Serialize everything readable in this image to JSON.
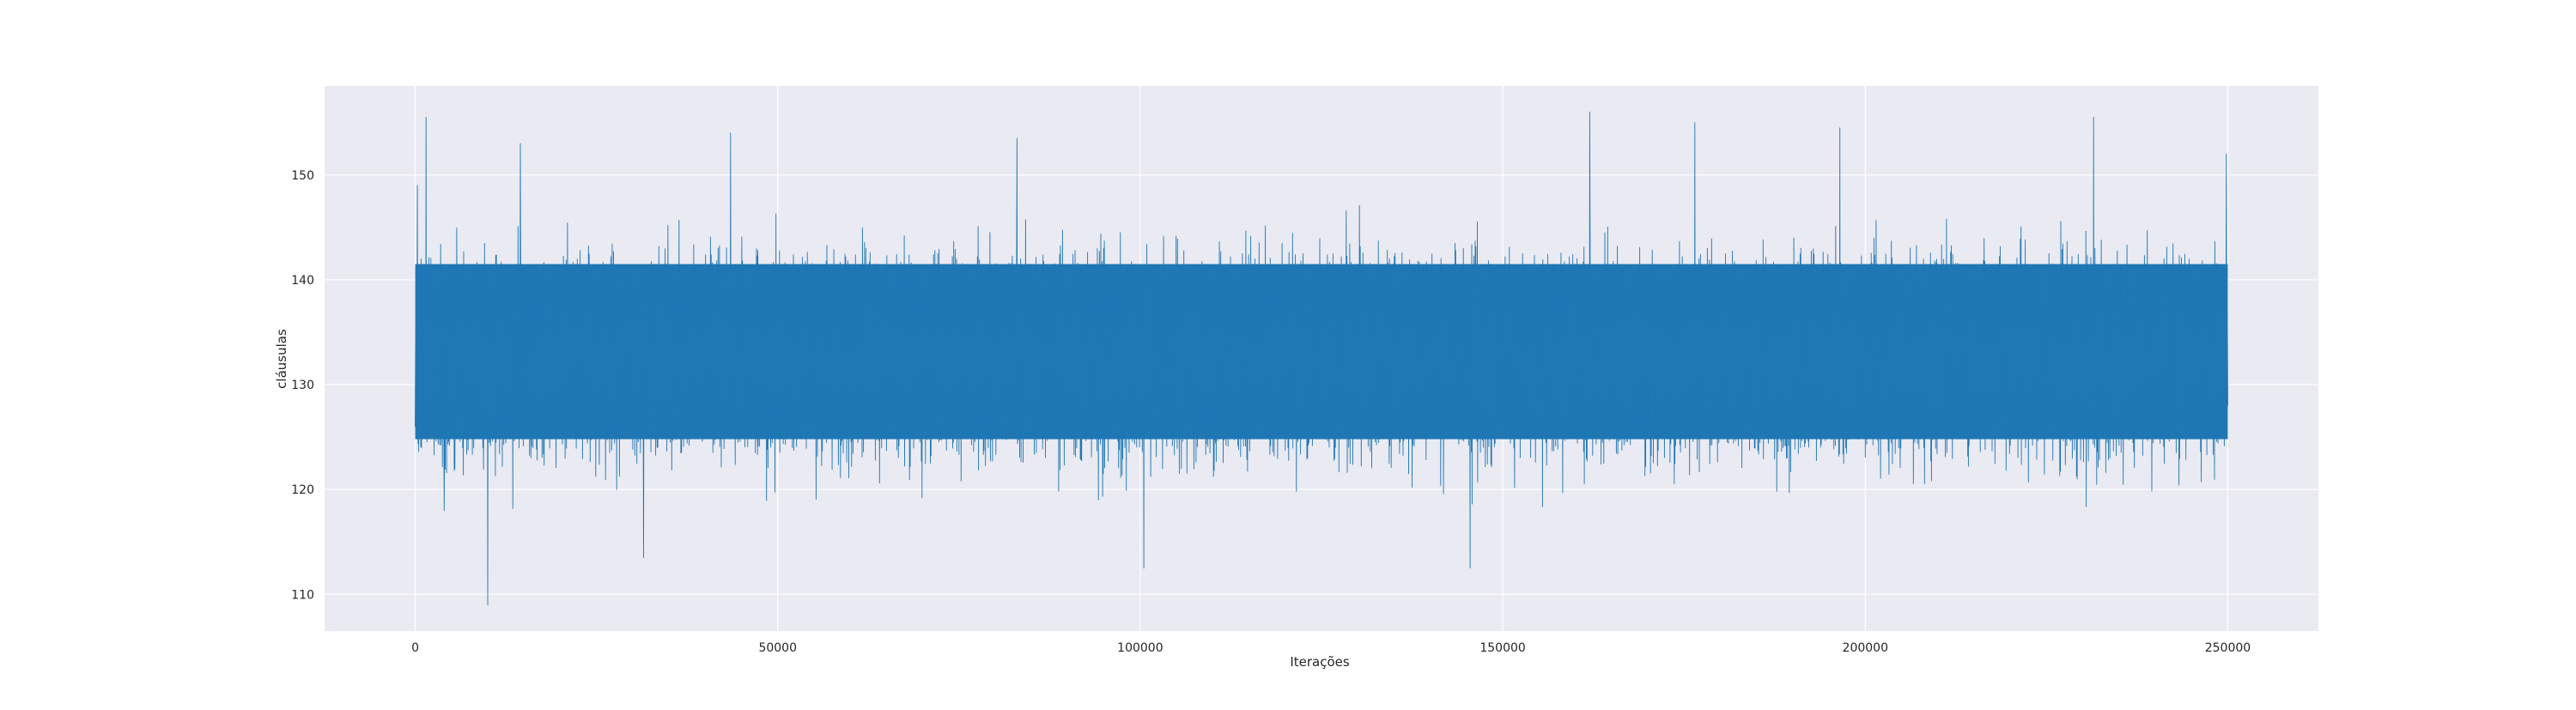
{
  "chart_data": {
    "type": "line",
    "title": "",
    "xlabel": "Iterações",
    "ylabel": "cláusulas",
    "xlim": [
      -12500,
      262500
    ],
    "ylim": [
      106.5,
      158.5
    ],
    "x_ticks": [
      0,
      50000,
      100000,
      150000,
      200000,
      250000
    ],
    "y_ticks": [
      110,
      120,
      130,
      140,
      150
    ],
    "x_tick_labels": [
      "0",
      "50000",
      "100000",
      "150000",
      "200000",
      "250000"
    ],
    "y_tick_labels": [
      "110",
      "120",
      "130",
      "140",
      "150"
    ],
    "grid": true,
    "legend": "none",
    "style": "seaborn-darkgrid",
    "colors": {
      "background": "#eaeaf2",
      "grid": "#ffffff",
      "line": "#1f77b4"
    },
    "series": [
      {
        "x_start": 0,
        "x_end": 250000,
        "mean": 132.5,
        "band_low": 124,
        "band_high": 142,
        "sampled_extremes": [
          {
            "x": 0,
            "y": 126
          },
          {
            "x": 300,
            "y": 149
          },
          {
            "x": 1500,
            "y": 155.5
          },
          {
            "x": 4000,
            "y": 118
          },
          {
            "x": 10000,
            "y": 109
          },
          {
            "x": 14500,
            "y": 153
          },
          {
            "x": 31500,
            "y": 113.5
          },
          {
            "x": 43500,
            "y": 154
          },
          {
            "x": 83000,
            "y": 153.5
          },
          {
            "x": 100500,
            "y": 112.5
          },
          {
            "x": 124000,
            "y": 125.5
          },
          {
            "x": 145500,
            "y": 112.5
          },
          {
            "x": 162000,
            "y": 156
          },
          {
            "x": 176500,
            "y": 155
          },
          {
            "x": 196500,
            "y": 154.5
          },
          {
            "x": 231500,
            "y": 155.5
          },
          {
            "x": 249800,
            "y": 152
          },
          {
            "x": 250000,
            "y": 128
          }
        ]
      }
    ]
  }
}
